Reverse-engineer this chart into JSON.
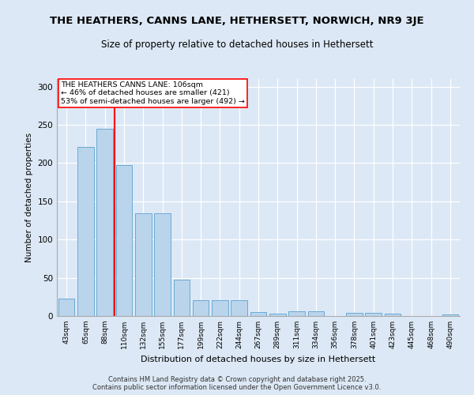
{
  "title": "THE HEATHERS, CANNS LANE, HETHERSETT, NORWICH, NR9 3JE",
  "subtitle": "Size of property relative to detached houses in Hethersett",
  "xlabel": "Distribution of detached houses by size in Hethersett",
  "ylabel": "Number of detached properties",
  "categories": [
    "43sqm",
    "65sqm",
    "88sqm",
    "110sqm",
    "132sqm",
    "155sqm",
    "177sqm",
    "199sqm",
    "222sqm",
    "244sqm",
    "267sqm",
    "289sqm",
    "311sqm",
    "334sqm",
    "356sqm",
    "378sqm",
    "401sqm",
    "423sqm",
    "445sqm",
    "468sqm",
    "490sqm"
  ],
  "values": [
    23,
    221,
    245,
    197,
    134,
    134,
    48,
    21,
    21,
    21,
    5,
    3,
    6,
    6,
    0,
    4,
    4,
    3,
    0,
    0,
    2
  ],
  "bar_color": "#bad4ec",
  "bar_edge_color": "#6aaad4",
  "background_color": "#dce8f5",
  "grid_color": "#ffffff",
  "ref_line_x": 2.5,
  "ref_line_label": "THE HEATHERS CANNS LANE: 106sqm",
  "ref_line_pct_smaller": "46% of detached houses are smaller (421)",
  "ref_line_pct_larger": "53% of semi-detached houses are larger (492)",
  "ylim": [
    0,
    310
  ],
  "yticks": [
    0,
    50,
    100,
    150,
    200,
    250,
    300
  ],
  "footer_line1": "Contains HM Land Registry data © Crown copyright and database right 2025.",
  "footer_line2": "Contains public sector information licensed under the Open Government Licence v3.0."
}
